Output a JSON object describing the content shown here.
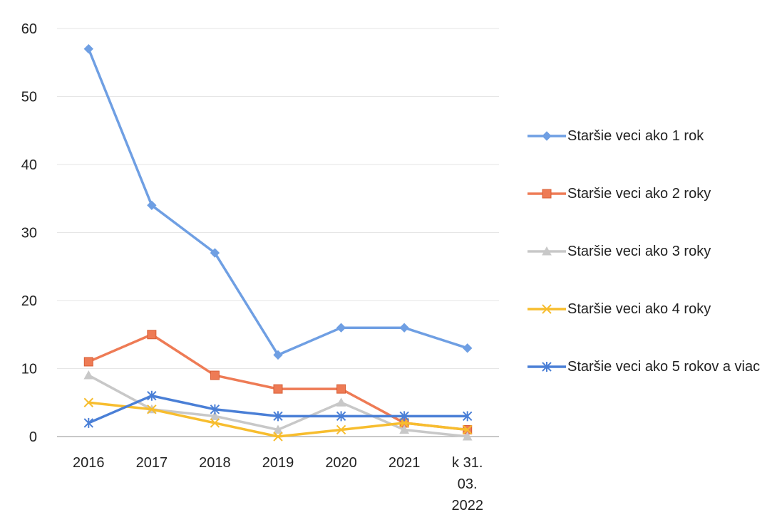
{
  "chart_data": {
    "type": "line",
    "categories": [
      "2016",
      "2017",
      "2018",
      "2019",
      "2020",
      "2021",
      "k 31. 03. 2022"
    ],
    "category_lines": [
      [
        "2016"
      ],
      [
        "2017"
      ],
      [
        "2018"
      ],
      [
        "2019"
      ],
      [
        "2020"
      ],
      [
        "2021"
      ],
      [
        "k 31.",
        "03.",
        "2022"
      ]
    ],
    "ylim": [
      0,
      60
    ],
    "yticks": [
      0,
      10,
      20,
      30,
      40,
      50,
      60
    ],
    "grid": true,
    "legend_position": "right",
    "series": [
      {
        "name": "Staršie veci ako 1 rok",
        "color": "#6f9fe3",
        "marker": "diamond",
        "values": [
          57,
          34,
          27,
          12,
          16,
          16,
          13
        ]
      },
      {
        "name": "Staršie veci ako 2 roky",
        "color": "#ee7b55",
        "marker": "square",
        "values": [
          11,
          15,
          9,
          7,
          7,
          2,
          1
        ]
      },
      {
        "name": "Staršie veci ako 3 roky",
        "color": "#c8c8c8",
        "marker": "triangle",
        "values": [
          9,
          4,
          3,
          1,
          5,
          1,
          0
        ]
      },
      {
        "name": "Staršie veci ako 4 roky",
        "color": "#f7bd2e",
        "marker": "x",
        "values": [
          5,
          4,
          2,
          0,
          1,
          2,
          1
        ]
      },
      {
        "name": "Staršie veci ako 5 rokov a viac",
        "color": "#4a7fd6",
        "marker": "star",
        "values": [
          2,
          6,
          4,
          3,
          3,
          3,
          3
        ]
      }
    ]
  }
}
